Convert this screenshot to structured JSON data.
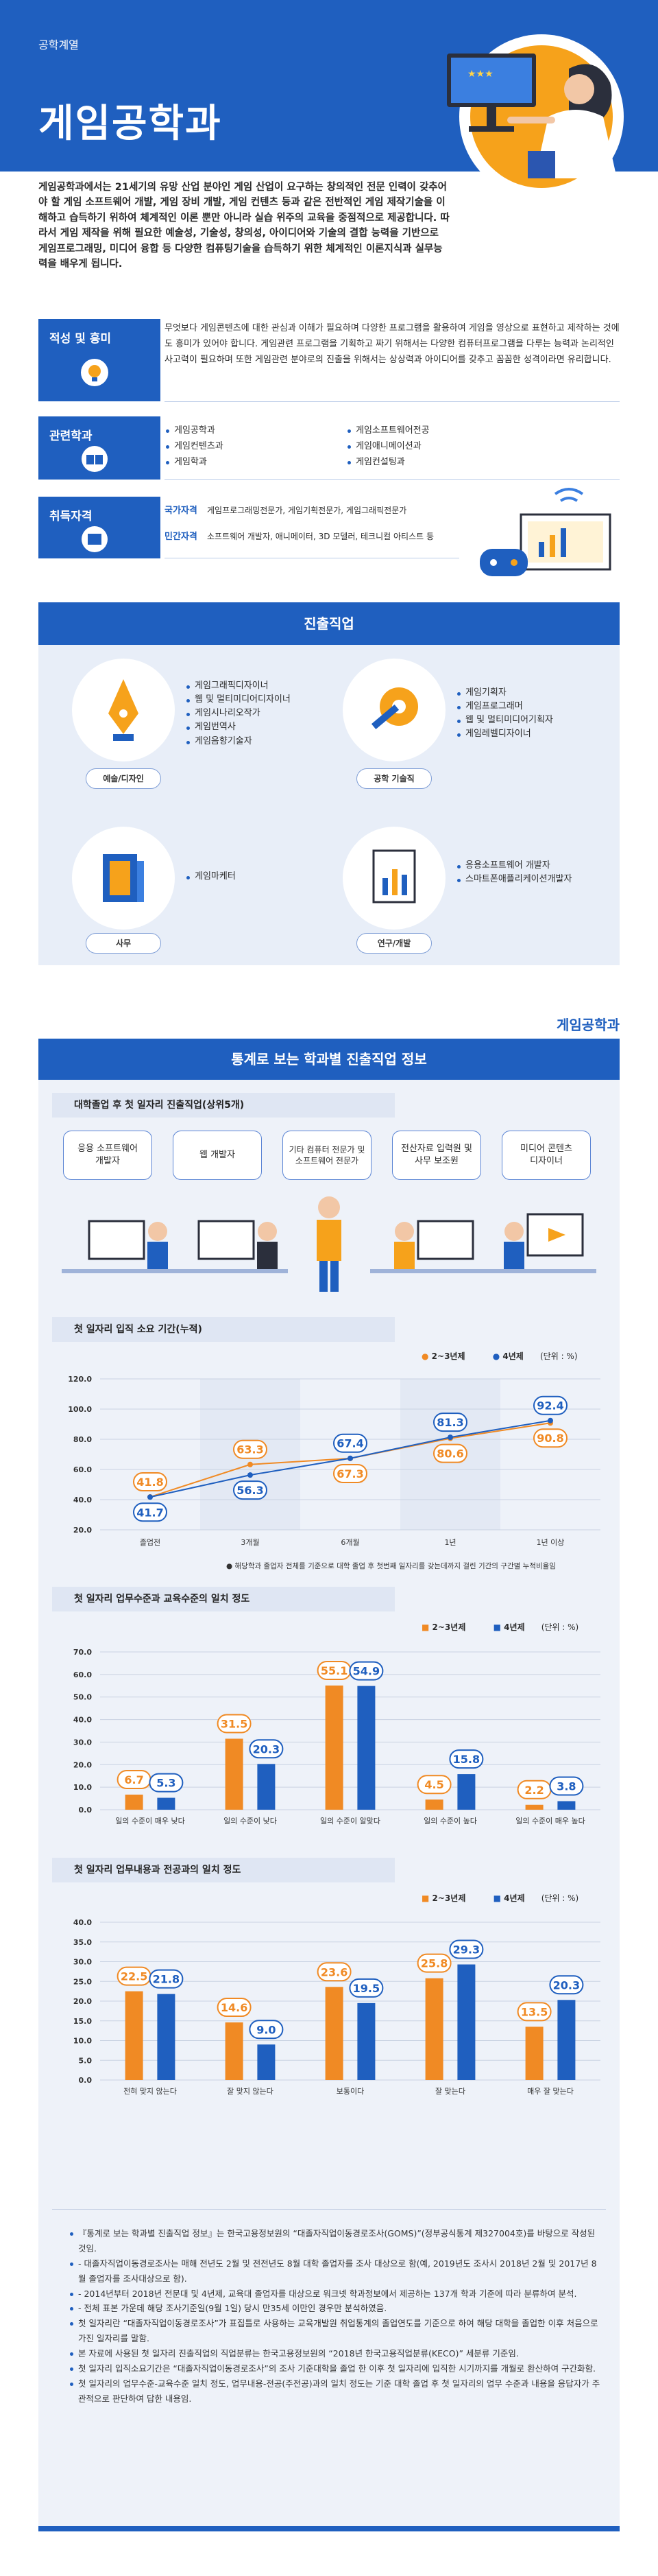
{
  "header": {
    "kicker": "공학계열",
    "title": "게임공학과"
  },
  "intro": "게임공학과에서는 21세기의 유망 산업 분야인 게임 산업이 요구하는 창의적인 전문 인력이 갖추어야 할 게임 소프트웨어 개발, 게임 장비 개발, 게임 컨텐츠 등과 같은 전반적인 게임 제작기술을 이해하고 습득하기 위하여 체계적인 이론 뿐만 아니라 실습 위주의 교육을 중점적으로 제공합니다. 따라서 게임 제작을 위해 필요한 예술성, 기술성, 창의성, 아이디어와 기술의 결합 능력을 기반으로 게임프로그래밍, 미디어 융합 등 다양한 컴퓨팅기술을 습득하기 위한 체계적인 이론지식과 실무능력을 배우게 됩니다.",
  "aptitude": {
    "label": "적성 및 흥미",
    "text": "무엇보다 게임콘텐츠에 대한 관심과 이해가 필요하며 다양한 프로그램을 활용하여 게임을 영상으로 표현하고 제작하는 것에도 흥미가 있어야 합니다. 게임관련 프로그램을 기획하고 짜기 위해서는 다양한 컴퓨터프로그램을 다루는 능력과 논리적인 사고력이 필요하며 또한 게임관련 분야로의 진출을 위해서는 상상력과 아이디어를 갖추고 꼼꼼한 성격이라면 유리합니다."
  },
  "related": {
    "label": "관련학과",
    "left": [
      "게임공학과",
      "게임컨텐츠과",
      "게임학과"
    ],
    "right": [
      "게임소프트웨어전공",
      "게임애니메이션과",
      "게임컨설팅과"
    ]
  },
  "certs": {
    "label": "취득자격",
    "national_label": "국가자격",
    "national": "게임프로그래밍전문가, 게임기획전문가, 게임그래픽전문가",
    "private_label": "민간자격",
    "private": "소프트웨어 개발자, 애니메이터, 3D 모델러, 테크니컬 아티스트 등"
  },
  "careers": {
    "title": "진출직업",
    "groups": [
      {
        "tag": "예술/디자인",
        "items": [
          "게임그래픽디자이너",
          "웹 및 멀티미디어디자이너",
          "게임시나리오작가",
          "게임번역사",
          "게임음향기술자"
        ]
      },
      {
        "tag": "공학 기술직",
        "items": [
          "게임기획자",
          "게임프로그래머",
          "웹 및 멀티미디어기획자",
          "게임레벨디자이너"
        ]
      },
      {
        "tag": "사무",
        "items": [
          "게임마케터"
        ]
      },
      {
        "tag": "연구/개발",
        "items": [
          "응용소프트웨어 개발자",
          "스마트폰애플리케이션개발자"
        ]
      }
    ]
  },
  "stats": {
    "logo": "게임공학과",
    "title": "통계로 보는 학과별 진출직업 정보",
    "top_jobs_title": "대학졸업 후 첫 일자리 진출직업(상위5개)",
    "top_jobs": [
      "응용 소프트웨어\n개발자",
      "웹 개발자",
      "기타 컴퓨터 전문가 및\n소프트웨어 전문가",
      "전산자료 입력원 및\n사무 보조원",
      "미디어 콘텐츠\n디자이너"
    ],
    "chart1_title": "첫 일자리 입직 소요 기간(누적)",
    "chart2_title": "첫 일자리 업무수준과 교육수준의 일치 정도",
    "chart3_title": "첫 일자리 업무내용과 전공과의 일치 정도",
    "legend_a": "2~3년제",
    "legend_b": "4년제",
    "unit": "(단위 : %)",
    "chart1_note": "● 해당학과 졸업자 전체를 기준으로 대학 졸업 후 첫번째 일자리를 갖는데까지 걸린 기간의 구간별 누적비율임",
    "colors": {
      "a": "#f08a24",
      "b": "#1f5fbf"
    }
  },
  "chart_data": [
    {
      "type": "line",
      "title": "첫 일자리 입직 소요 기간(누적)",
      "categories": [
        "졸업전",
        "3개월",
        "6개월",
        "1년",
        "1년 이상"
      ],
      "series": [
        {
          "name": "2~3년제",
          "values": [
            41.8,
            63.3,
            67.3,
            80.6,
            90.8
          ]
        },
        {
          "name": "4년제",
          "values": [
            41.7,
            56.3,
            67.4,
            81.3,
            92.4
          ]
        }
      ],
      "ylim": [
        20,
        120
      ],
      "yticks": [
        "120.0",
        "100.0",
        "80.0",
        "60.0",
        "40.0",
        "20.0"
      ]
    },
    {
      "type": "bar",
      "title": "첫 일자리 업무수준과 교육수준의 일치 정도",
      "categories": [
        "일의 수준이 매우 낮다",
        "일의 수준이 낮다",
        "일의 수준이 알맞다",
        "일의 수준이 높다",
        "일의 수준이 매우 높다"
      ],
      "series": [
        {
          "name": "2~3년제",
          "values": [
            6.7,
            31.5,
            55.1,
            4.5,
            2.2
          ]
        },
        {
          "name": "4년제",
          "values": [
            5.3,
            20.3,
            54.9,
            15.8,
            3.8
          ]
        }
      ],
      "ylim": [
        0,
        70
      ],
      "yticks": [
        "70.0",
        "60.0",
        "50.0",
        "40.0",
        "30.0",
        "20.0",
        "10.0",
        "0.0"
      ]
    },
    {
      "type": "bar",
      "title": "첫 일자리 업무내용과 전공과의 일치 정도",
      "categories": [
        "전혀 맞지 않는다",
        "잘 맞지 않는다",
        "보통이다",
        "잘 맞는다",
        "매우 잘 맞는다"
      ],
      "series": [
        {
          "name": "2~3년제",
          "values": [
            22.5,
            14.6,
            23.6,
            25.8,
            13.5
          ]
        },
        {
          "name": "4년제",
          "values": [
            21.8,
            9.0,
            19.5,
            29.3,
            20.3
          ]
        }
      ],
      "ylim": [
        0,
        40
      ],
      "yticks": [
        "40.0",
        "35.0",
        "30.0",
        "25.0",
        "20.0",
        "15.0",
        "10.0",
        "5.0",
        "0.0"
      ]
    }
  ],
  "footnotes": [
    "『통계로 보는 학과별 진출직업 정보』는 한국고용정보원의 “대졸자직업이동경로조사(GOMS)”(정부공식통계 제327004호)를 바탕으로 작성된 것임.",
    "- 대졸자직업이동경로조사는 매해 전년도 2월 및 전전년도 8월 대학 졸업자를 조사 대상으로 함(예, 2019년도 조사시 2018년 2월 및 2017년 8월 졸업자를 조사대상으로 함).",
    "- 2014년부터 2018년 전문대 및 4년제, 교육대 졸업자를 대상으로 워크넷 학과정보에서 제공하는 137개 학과 기준에 따라 분류하여 분석.",
    "- 전체 표본 가운데 해당 조사기준일(9월 1일) 당시 만35세 이만인 경우만 분석하였음.",
    "첫 일자리란 “대졸자직업이동경로조사”가 표집틀로 사용하는 교육개발원 취업통계의 졸업연도를 기준으로 하여 해당 대학을 졸업한 이후 처음으로 가진 일자리를 말함.",
    "본 자료에 사용된 첫 일자리 진출직업의 직업분류는 한국고용정보원의 “2018년 한국고용직업분류(KECO)” 세분류 기준임.",
    "첫 일자리 입직소요기간은 “대졸자직업이동경로조사”의 조사 기준대학을 졸업 한 이후 첫 일자리에 입직한 시기까지를 개월로 환산하여 구간화함.",
    "첫 일자리의 업무수준-교육수준 일치 정도, 업무내용-전공(주전공)과의 일치 정도는 기준 대학 졸업 후 첫 일자리의 업무 수준과 내용을 응답자가 주관적으로 판단하여 답한 내용임."
  ]
}
